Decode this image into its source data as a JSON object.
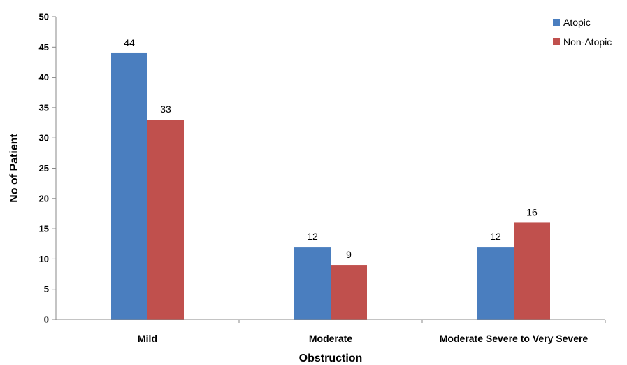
{
  "chart_data": {
    "type": "bar",
    "categories": [
      "Mild",
      "Moderate",
      "Moderate Severe to Very Severe"
    ],
    "series": [
      {
        "name": "Atopic",
        "values": [
          44,
          12,
          12
        ],
        "color": "#4a7ebf"
      },
      {
        "name": "Non-Atopic",
        "values": [
          33,
          9,
          16
        ],
        "color": "#c0504d"
      }
    ],
    "xlabel": "Obstruction",
    "ylabel": "No of Patient",
    "ylim": [
      0,
      50
    ],
    "yticks": [
      0,
      5,
      10,
      15,
      20,
      25,
      30,
      35,
      40,
      45,
      50
    ],
    "grid": false,
    "legend_position": "top-right",
    "data_labels": true
  }
}
